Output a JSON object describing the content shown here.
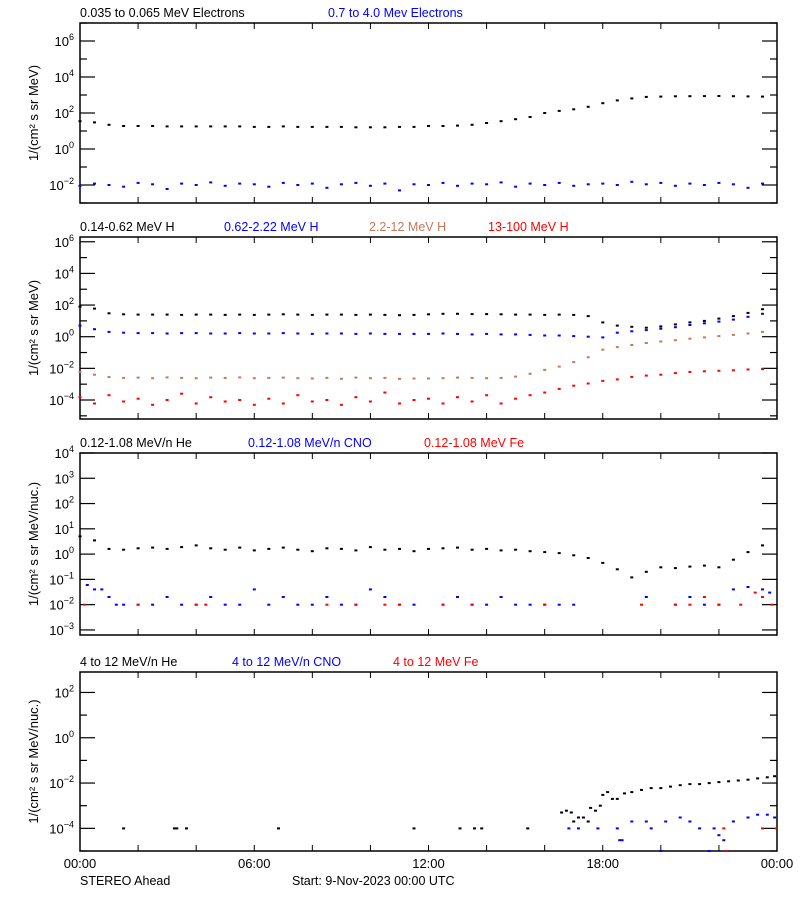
{
  "colors": {
    "black": "#000000",
    "blue": "#0000ff",
    "brown": "#c8785a",
    "red": "#ff0000"
  },
  "x_axis": {
    "tick_labels": [
      "00:00",
      "06:00",
      "12:00",
      "18:00",
      "00:00"
    ],
    "range_hours": [
      0,
      24
    ]
  },
  "footer": {
    "left": "STEREO Ahead",
    "center": "Start:  9-Nov-2023 00:00 UTC"
  },
  "half_hour_times": [
    "00:00",
    "00:30",
    "01:00",
    "01:30",
    "02:00",
    "02:30",
    "03:00",
    "03:30",
    "04:00",
    "04:30",
    "05:00",
    "05:30",
    "06:00",
    "06:30",
    "07:00",
    "07:30",
    "08:00",
    "08:30",
    "09:00",
    "09:30",
    "10:00",
    "10:30",
    "11:00",
    "11:30",
    "12:00",
    "12:30",
    "13:00",
    "13:30",
    "14:00",
    "14:30",
    "15:00",
    "15:30",
    "16:00",
    "16:30",
    "17:00",
    "17:30",
    "18:00",
    "18:30",
    "19:00",
    "19:30",
    "20:00",
    "20:30",
    "21:00",
    "21:30",
    "22:00",
    "22:30",
    "23:00",
    "23:30"
  ],
  "chart_data": [
    {
      "type": "scatter",
      "ylabel": "1/(cm² s sr MeV)",
      "yscale": "log",
      "ylim": [
        0.001,
        10000000
      ],
      "y_ticks": [
        1000000,
        10000,
        100,
        1,
        0.01
      ],
      "series": [
        {
          "name": "0.035 to 0.065 MeV Electrons",
          "color": "black",
          "values": [
            35,
            30,
            22,
            19,
            19,
            19,
            18,
            18,
            18,
            18,
            18,
            18,
            17,
            17,
            18,
            17,
            17,
            17,
            17,
            16,
            16,
            16,
            17,
            17,
            19,
            19,
            20,
            22,
            28,
            35,
            45,
            60,
            100,
            130,
            160,
            220,
            350,
            500,
            650,
            780,
            820,
            850,
            860,
            870,
            880,
            860,
            840,
            820
          ]
        },
        {
          "name": "0.7 to 4.0 Mev Electrons",
          "color": "blue",
          "values": [
            0.009,
            0.012,
            0.01,
            0.008,
            0.013,
            0.011,
            0.006,
            0.012,
            0.01,
            0.014,
            0.009,
            0.012,
            0.011,
            0.008,
            0.013,
            0.01,
            0.012,
            0.007,
            0.011,
            0.013,
            0.009,
            0.012,
            0.005,
            0.011,
            0.01,
            0.013,
            0.009,
            0.012,
            0.011,
            0.014,
            0.008,
            0.012,
            0.01,
            0.013,
            0.009,
            0.011,
            0.012,
            0.01,
            0.015,
            0.011,
            0.013,
            0.009,
            0.012,
            0.01,
            0.013,
            0.011,
            0.007,
            0.012
          ]
        }
      ]
    },
    {
      "type": "scatter",
      "ylabel": "1/(cm² s sr MeV)",
      "yscale": "log",
      "ylim": [
        6.3e-06,
        2000000
      ],
      "y_ticks": [
        1000000,
        10000,
        100,
        1,
        0.01,
        0.0001
      ],
      "series": [
        {
          "name": "0.14-0.62 MeV H",
          "color": "black",
          "values": [
            80,
            60,
            30,
            26,
            25,
            25,
            25,
            24,
            25,
            25,
            24,
            25,
            24,
            25,
            26,
            25,
            24,
            25,
            25,
            24,
            25,
            24,
            23,
            24,
            26,
            28,
            28,
            27,
            27,
            26,
            25,
            25,
            24,
            25,
            24,
            20,
            8,
            5,
            4.2,
            3.7,
            4.5,
            6,
            8,
            10,
            14,
            20,
            32,
            55
          ]
        },
        {
          "name": "0.62-2.22 MeV H",
          "color": "blue",
          "values": [
            5,
            3,
            2,
            1.8,
            1.7,
            1.7,
            1.6,
            1.7,
            1.7,
            1.6,
            1.6,
            1.7,
            1.6,
            1.6,
            1.7,
            1.6,
            1.5,
            1.6,
            1.6,
            1.5,
            1.6,
            1.5,
            1.5,
            1.5,
            1.5,
            1.6,
            1.5,
            1.4,
            1.5,
            1.4,
            1.4,
            1.3,
            1.2,
            1.2,
            1.1,
            1.0,
            0.9,
            1.8,
            2.2,
            2.6,
            3.2,
            4,
            5.5,
            7,
            9,
            12,
            18,
            28
          ]
        },
        {
          "name": "2.2-12 MeV H",
          "color": "brown",
          "values": [
            0.006,
            0.004,
            0.0028,
            0.0025,
            0.0026,
            0.0024,
            0.0027,
            0.0025,
            0.0024,
            0.0026,
            0.0025,
            0.0027,
            0.0024,
            0.0025,
            0.0026,
            0.0024,
            0.0023,
            0.0025,
            0.0022,
            0.0026,
            0.0024,
            0.0025,
            0.0022,
            0.0023,
            0.0023,
            0.0024,
            0.0026,
            0.0025,
            0.0024,
            0.0025,
            0.003,
            0.0045,
            0.008,
            0.013,
            0.025,
            0.05,
            0.15,
            0.22,
            0.3,
            0.4,
            0.5,
            0.6,
            0.75,
            0.9,
            1.1,
            1.3,
            1.6,
            2.0
          ]
        },
        {
          "name": "13-100 MeV H",
          "color": "red",
          "values": [
            0.00015,
            6e-05,
            0.0002,
            8e-05,
            0.00012,
            5e-05,
            0.0001,
            0.00025,
            6e-05,
            0.00015,
            8e-05,
            0.0001,
            5e-05,
            0.00012,
            6e-05,
            0.0002,
            8e-05,
            0.0001,
            5e-05,
            0.00015,
            8e-05,
            0.0003,
            6e-05,
            0.0001,
            0.00012,
            6e-05,
            0.00015,
            8e-05,
            0.0002,
            6e-05,
            0.00012,
            0.0002,
            0.0003,
            0.0005,
            0.0008,
            0.0011,
            0.0016,
            0.002,
            0.0029,
            0.0035,
            0.004,
            0.005,
            0.006,
            0.0065,
            0.007,
            0.0075,
            0.0085,
            0.009
          ]
        }
      ]
    },
    {
      "type": "scatter",
      "ylabel": "1/(cm² s sr MeV/nuc.)",
      "yscale": "log",
      "ylim": [
        0.00063,
        10000
      ],
      "y_ticks": [
        10000,
        1000,
        100,
        10,
        1,
        0.1,
        0.01,
        0.001
      ],
      "series": [
        {
          "name": "0.12-1.08 MeV/n He",
          "color": "black",
          "values": [
            5,
            3.5,
            1.6,
            1.5,
            1.7,
            1.8,
            1.6,
            1.9,
            2.2,
            1.7,
            1.5,
            1.8,
            1.4,
            1.6,
            1.8,
            1.5,
            1.3,
            1.7,
            1.6,
            1.4,
            1.9,
            1.5,
            1.6,
            1.3,
            1.6,
            1.7,
            1.8,
            1.5,
            1.6,
            1.4,
            1.5,
            1.3,
            1.2,
            1.1,
            0.9,
            0.7,
            0.45,
            0.25,
            0.12,
            0.2,
            0.3,
            0.28,
            0.32,
            0.35,
            0.3,
            0.6,
            1.2,
            2.2
          ]
        },
        {
          "name": "0.12-1.08 MeV/n CNO",
          "color": "blue",
          "points": [
            [
              "00:15",
              0.06
            ],
            [
              "00:30",
              0.04
            ],
            [
              "00:45",
              0.04
            ],
            [
              "01:00",
              0.02
            ],
            [
              "01:15",
              0.01
            ],
            [
              "01:30",
              0.01
            ],
            [
              "02:00",
              0.01
            ],
            [
              "02:30",
              0.01
            ],
            [
              "03:00",
              0.02
            ],
            [
              "03:30",
              0.01
            ],
            [
              "04:00",
              0.01
            ],
            [
              "04:30",
              0.02
            ],
            [
              "05:00",
              0.01
            ],
            [
              "05:30",
              0.01
            ],
            [
              "06:00",
              0.04
            ],
            [
              "06:30",
              0.01
            ],
            [
              "07:00",
              0.02
            ],
            [
              "07:30",
              0.01
            ],
            [
              "08:00",
              0.01
            ],
            [
              "08:30",
              0.02
            ],
            [
              "09:00",
              0.01
            ],
            [
              "09:30",
              0.01
            ],
            [
              "10:00",
              0.04
            ],
            [
              "10:30",
              0.02
            ],
            [
              "11:00",
              0.01
            ],
            [
              "11:30",
              0.01
            ],
            [
              "12:30",
              0.01
            ],
            [
              "13:00",
              0.02
            ],
            [
              "13:30",
              0.01
            ],
            [
              "14:00",
              0.01
            ],
            [
              "14:30",
              0.02
            ],
            [
              "15:00",
              0.01
            ],
            [
              "15:30",
              0.01
            ],
            [
              "16:00",
              0.01
            ],
            [
              "16:30",
              0.01
            ],
            [
              "17:00",
              0.01
            ],
            [
              "19:30",
              0.02
            ],
            [
              "20:30",
              0.01
            ],
            [
              "21:00",
              0.02
            ],
            [
              "21:30",
              0.01
            ],
            [
              "22:00",
              0.01
            ],
            [
              "22:30",
              0.04
            ],
            [
              "23:00",
              0.05
            ],
            [
              "23:30",
              0.04
            ],
            [
              "23:45",
              0.03
            ]
          ]
        },
        {
          "name": "0.12-1.08 MeV Fe",
          "color": "red",
          "points": [
            [
              "00:10",
              0.01
            ],
            [
              "02:00",
              0.01
            ],
            [
              "04:00",
              0.01
            ],
            [
              "04:20",
              0.01
            ],
            [
              "08:30",
              0.01
            ],
            [
              "09:30",
              0.01
            ],
            [
              "10:30",
              0.01
            ],
            [
              "11:00",
              0.01
            ],
            [
              "12:30",
              0.01
            ],
            [
              "13:30",
              0.01
            ],
            [
              "16:00",
              0.01
            ],
            [
              "19:20",
              0.01
            ],
            [
              "20:30",
              0.01
            ],
            [
              "21:00",
              0.01
            ],
            [
              "21:30",
              0.02
            ],
            [
              "22:00",
              0.01
            ],
            [
              "22:45",
              0.01
            ],
            [
              "23:15",
              0.03
            ],
            [
              "23:30",
              0.02
            ],
            [
              "23:50",
              0.01
            ]
          ]
        }
      ]
    },
    {
      "type": "scatter",
      "ylabel": "1/(cm² s sr MeV/nuc.)",
      "yscale": "log",
      "ylim": [
        1e-05,
        800
      ],
      "y_ticks": [
        100,
        1,
        0.01,
        0.0001
      ],
      "series": [
        {
          "name": "4 to 12 MeV/n He",
          "color": "black",
          "points": [
            [
              "01:30",
              0.0001
            ],
            [
              "03:15",
              0.0001
            ],
            [
              "03:20",
              0.0001
            ],
            [
              "03:40",
              0.0001
            ],
            [
              "06:50",
              0.0001
            ],
            [
              "11:30",
              0.0001
            ],
            [
              "13:05",
              0.0001
            ],
            [
              "13:35",
              0.0001
            ],
            [
              "13:50",
              0.0001
            ],
            [
              "15:25",
              0.0001
            ],
            [
              "16:35",
              0.0005
            ],
            [
              "16:45",
              0.0006
            ],
            [
              "16:55",
              0.0005
            ],
            [
              "17:00",
              0.0002
            ],
            [
              "17:10",
              0.0003
            ],
            [
              "17:20",
              0.0003
            ],
            [
              "17:30",
              0.0002
            ],
            [
              "17:35",
              0.0008
            ],
            [
              "17:45",
              0.0006
            ],
            [
              "17:55",
              0.001
            ],
            [
              "18:00",
              0.003
            ],
            [
              "18:10",
              0.004
            ],
            [
              "18:20",
              0.002
            ],
            [
              "18:30",
              0.002
            ],
            [
              "18:45",
              0.0035
            ],
            [
              "19:00",
              0.004
            ],
            [
              "19:20",
              0.005
            ],
            [
              "19:40",
              0.006
            ],
            [
              "20:00",
              0.006
            ],
            [
              "20:20",
              0.007
            ],
            [
              "20:40",
              0.008
            ],
            [
              "21:00",
              0.009
            ],
            [
              "21:20",
              0.009
            ],
            [
              "21:40",
              0.01
            ],
            [
              "22:00",
              0.011
            ],
            [
              "22:20",
              0.012
            ],
            [
              "22:40",
              0.013
            ],
            [
              "23:00",
              0.014
            ],
            [
              "23:20",
              0.016
            ],
            [
              "23:40",
              0.018
            ],
            [
              "23:55",
              0.02
            ]
          ]
        },
        {
          "name": "4 to 12 MeV/n CNO",
          "color": "blue",
          "points": [
            [
              "16:50",
              0.0001
            ],
            [
              "17:10",
              0.0001
            ],
            [
              "17:50",
              0.0001
            ],
            [
              "18:30",
              0.0001
            ],
            [
              "18:35",
              3e-05
            ],
            [
              "18:40",
              3e-05
            ],
            [
              "19:00",
              0.0002
            ],
            [
              "19:30",
              0.0002
            ],
            [
              "19:40",
              0.0001
            ],
            [
              "20:00",
              1e-05
            ],
            [
              "20:10",
              0.0002
            ],
            [
              "20:40",
              0.0003
            ],
            [
              "21:00",
              0.0002
            ],
            [
              "21:20",
              0.0001
            ],
            [
              "21:40",
              1e-05
            ],
            [
              "21:50",
              0.0001
            ],
            [
              "22:00",
              5e-05
            ],
            [
              "22:10",
              3e-05
            ],
            [
              "22:30",
              0.0002
            ],
            [
              "23:00",
              0.0003
            ],
            [
              "23:20",
              0.0004
            ],
            [
              "23:40",
              0.0004
            ],
            [
              "23:55",
              0.0003
            ]
          ]
        },
        {
          "name": "4 to 12 MeV Fe",
          "color": "red",
          "points": [
            [
              "22:10",
              0.0001
            ],
            [
              "22:15",
              1e-05
            ],
            [
              "23:30",
              0.0001
            ],
            [
              "23:59",
              0.0001
            ]
          ]
        }
      ]
    }
  ]
}
